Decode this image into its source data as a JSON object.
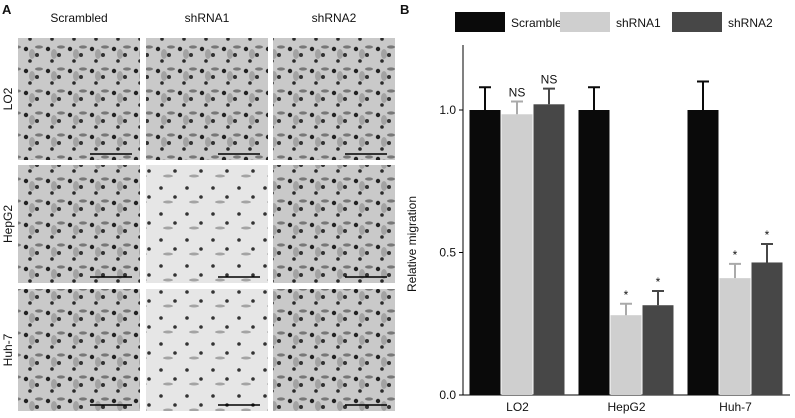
{
  "panel_a": {
    "label": "A",
    "columns": [
      "Scrambled",
      "shRNA1",
      "shRNA2"
    ],
    "rows": [
      "LO2",
      "HepG2",
      "Huh-7"
    ]
  },
  "chart_data": {
    "type": "bar",
    "label": "B",
    "ylabel": "Relative migration",
    "categories": [
      "LO2",
      "HepG2",
      "Huh-7"
    ],
    "series": [
      {
        "name": "Scrambled",
        "color": "#0a0a0a",
        "values": [
          1.0,
          1.0,
          1.0
        ],
        "errors": [
          0.08,
          0.08,
          0.1
        ],
        "annotations": [
          null,
          null,
          null
        ]
      },
      {
        "name": "shRNA1",
        "color": "#cfcfcf",
        "values": [
          0.985,
          0.28,
          0.41
        ],
        "errors": [
          0.045,
          0.04,
          0.05
        ],
        "annotations": [
          "NS",
          "*",
          "*"
        ]
      },
      {
        "name": "shRNA2",
        "color": "#474747",
        "values": [
          1.02,
          0.315,
          0.465
        ],
        "errors": [
          0.055,
          0.05,
          0.065
        ],
        "annotations": [
          "NS",
          "*",
          "*"
        ]
      }
    ],
    "ylim": [
      0,
      1.2
    ],
    "yticks": [
      {
        "value": 0,
        "label": "0.0"
      },
      {
        "value": 0.5,
        "label": "0.5"
      },
      {
        "value": 1,
        "label": "1.0"
      }
    ]
  }
}
